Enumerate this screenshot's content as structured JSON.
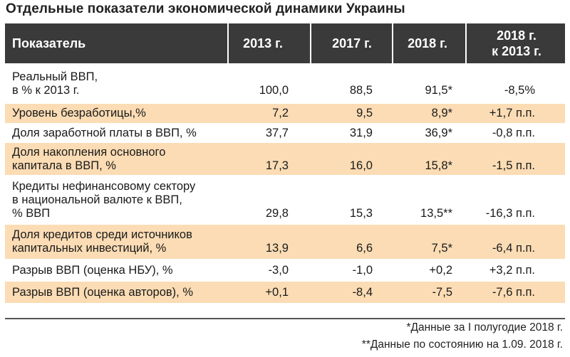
{
  "title": "Отдельные показатели экономической динамики Украины",
  "header": {
    "col0": "Показатель",
    "col1": "2013 г.",
    "col2": "2017 г.",
    "col3": "2018 г.",
    "col4_line1": "2018 г.",
    "col4_line2": "к 2013 г."
  },
  "rows": [
    {
      "label_lines": [
        "Реальный ВВП,",
        "в % к 2013 г."
      ],
      "v2013": "100,0",
      "v2017": "88,5",
      "v2018": "91,5*",
      "vdiff": "-8,5%"
    },
    {
      "label_lines": [
        "Уровень безработицы,%"
      ],
      "v2013": "7,2",
      "v2017": "9,5",
      "v2018": "8,9*",
      "vdiff": "+1,7 п.п."
    },
    {
      "label_lines": [
        "Доля заработной платы в ВВП, %"
      ],
      "v2013": "37,7",
      "v2017": "31,9",
      "v2018": "36,9*",
      "vdiff": "-0,8 п.п."
    },
    {
      "label_lines": [
        "Доля накопления основного",
        "капитала в ВВП, %"
      ],
      "v2013": "17,3",
      "v2017": "16,0",
      "v2018": "15,8*",
      "vdiff": "-1,5 п.п."
    },
    {
      "label_lines": [
        "Кредиты нефинансовому сектору",
        "в национальной валюте к ВВП,",
        "% ВВП"
      ],
      "v2013": "29,8",
      "v2017": "15,3",
      "v2018": "13,5**",
      "vdiff": "-16,3 п.п."
    },
    {
      "label_lines": [
        "Доля  кредитов среди источников",
        "капитальных инвестиций, %"
      ],
      "v2013": "13,9",
      "v2017": "6,6",
      "v2018": "7,5*",
      "vdiff": "-6,4 п.п."
    },
    {
      "label_lines": [
        "Разрыв ВВП (оценка НБУ), %"
      ],
      "v2013": "-3,0",
      "v2017": "-1,0",
      "v2018": "+0,2",
      "vdiff": "+3,2 п.п."
    },
    {
      "label_lines": [
        "Разрыв ВВП (оценка авторов), %"
      ],
      "v2013": "+0,1",
      "v2017": "-8,4",
      "v2018": "-7,5",
      "vdiff": "-7,6 п.п."
    }
  ],
  "notes": {
    "note1": "*Данные за I полугодие 2018 г.",
    "note2": "**Данные по состоянию на 1.09. 2018 г."
  },
  "colors": {
    "header_bg": "#3a3a3a",
    "shade": "#fbdcb4"
  }
}
